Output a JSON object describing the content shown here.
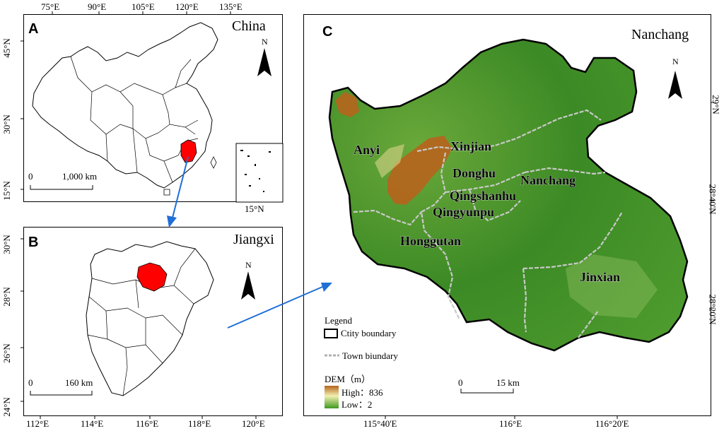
{
  "panels": {
    "a": {
      "letter": "A",
      "title": "China",
      "scale": "1,000 km",
      "scale_start": "0",
      "inset_lat": "15°N",
      "north": "N",
      "top_ticks": [
        "75°E",
        "90°E",
        "105°E",
        "120°E",
        "135°E"
      ],
      "left_ticks": [
        "45°N",
        "30°N",
        "15°N"
      ]
    },
    "b": {
      "letter": "B",
      "title": "Jiangxi",
      "scale": "160 km",
      "scale_start": "0",
      "north": "N",
      "bottom_ticks": [
        "112°E",
        "114°E",
        "116°E",
        "118°E",
        "120°E"
      ],
      "left_ticks": [
        "30°N",
        "28°N",
        "26°N",
        "24°N"
      ]
    },
    "c": {
      "letter": "C",
      "title": "Nanchang",
      "scale": "15 km",
      "scale_start": "0",
      "north": "N",
      "bottom_ticks": [
        "115°40'E",
        "116°E",
        "116°20'E"
      ],
      "right_ticks": [
        "29°N",
        "28°40'N",
        "28°20'N"
      ],
      "towns": [
        "Xinjian",
        "Anyi",
        "Donghu",
        "Nanchang",
        "Qingshanhu",
        "Qingyunpu",
        "Honggutan",
        "Jinxian"
      ]
    }
  },
  "legend": {
    "title": "Legend",
    "city_boundary": "Ctity boundary",
    "town_boundary": "Town biundary",
    "dem_title": "DEM（m）",
    "high": "High：836",
    "low": "Low：2"
  },
  "colors": {
    "highlight": "#ff0000",
    "arrow": "#1f6fd6",
    "dem_high": "#b5651d",
    "dem_mid": "#3f8f2a",
    "dem_low": "#4a9a2a"
  }
}
